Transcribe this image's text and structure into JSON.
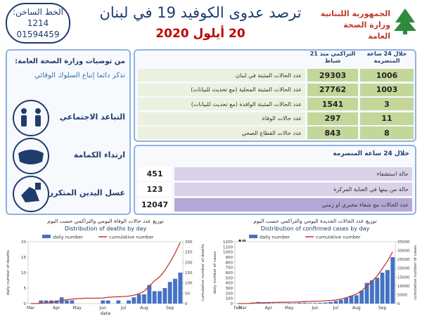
{
  "header": {
    "hotline_label": "الخط الساخن:",
    "hotline_numbers": [
      "1214",
      "01594459"
    ],
    "title": "ترصد عدوى الكوفيد 19 في لبنان",
    "date": "20 أيلول 2020",
    "ministry": [
      "الجمهورية اللبنانية",
      "وزارة الصحة العامة"
    ]
  },
  "recommendations": {
    "title": "من توصيات وزارة الصحة العامة:",
    "subtitle": "تذكر دائما إتباع السلوك الوقائي",
    "items": [
      "التباعد الاجتماعي",
      "ارتداء الكمامة",
      "غسل اليدين المتكرر"
    ]
  },
  "summary_table": {
    "headers": [
      "خلال 24 ساعة المنصرمة",
      "التراكمي منذ 21 شباط"
    ],
    "rows": [
      [
        1006,
        29303,
        "عدد الحالات المثبتة في لبنان"
      ],
      [
        1003,
        27762,
        "عدد الحالات المثبتة المحلية (مع تحديث للبيانات)"
      ],
      [
        3,
        1541,
        "عدد الحالات المثبتة الوافدة (مع تحديث للبيانات)"
      ],
      [
        11,
        297,
        "عدد حالات الوفاة"
      ],
      [
        8,
        843,
        "عدد حالات القطاع الصحي"
      ]
    ]
  },
  "hospital_table": {
    "title": "خلال 24 ساعة المنصرمة",
    "rows": [
      [
        451,
        "حالة استشفاء"
      ],
      [
        123,
        "حالة من بينها في العناية المركزة"
      ],
      [
        12047,
        "عدد الحالات مع شفاء مخبري او زمني"
      ]
    ]
  },
  "chart_data": [
    {
      "type": "combo",
      "title_ar": "توزيع عدد حالات الوفاة اليومي والتراكمي حسب اليوم",
      "title": "Distribution of deaths by day",
      "ylabel": "daily number of deaths",
      "y2label": "cumulative number of deaths",
      "xlabel": "date",
      "categories": [
        "Mar",
        null,
        null,
        null,
        null,
        "Apr",
        null,
        null,
        null,
        "May",
        null,
        null,
        null,
        null,
        "Jun",
        null,
        null,
        null,
        "Jul",
        null,
        null,
        null,
        "Aug",
        null,
        null,
        null,
        null,
        "Sep",
        null,
        null
      ],
      "series": [
        {
          "name": "daily number",
          "type": "bar",
          "color": "#4472c4",
          "values": [
            0,
            0,
            1,
            1,
            1,
            1,
            2,
            1,
            1,
            0,
            0,
            0,
            0,
            0,
            1,
            1,
            0,
            1,
            0,
            1,
            2,
            3,
            3,
            6,
            4,
            4,
            5,
            7,
            8,
            10
          ]
        },
        {
          "name": "cumulative number",
          "type": "line",
          "axis": "y2",
          "color": "#c0392b",
          "values": [
            0,
            0,
            1,
            3,
            5,
            9,
            14,
            19,
            21,
            24,
            25,
            26,
            26,
            26,
            27,
            30,
            32,
            33,
            34,
            36,
            40,
            48,
            60,
            85,
            110,
            130,
            160,
            200,
            245,
            297
          ]
        }
      ],
      "ylim": [
        0,
        20
      ],
      "yticks": [
        0,
        5,
        10,
        15,
        20
      ],
      "y2lim": [
        0,
        300
      ],
      "y2ticks": [
        0,
        50,
        100,
        150,
        200,
        250,
        300
      ]
    },
    {
      "type": "combo",
      "title_ar": "توزيع عدد الحالات الجديدة اليومي والتراكمي حسب اليوم",
      "title": "Distribution of confirmed cases by day",
      "annotation": "All",
      "ylabel": "daily number of cases",
      "y2label": "cumulative number of cases",
      "categories": [
        "Feb",
        "Mar",
        null,
        null,
        null,
        null,
        "Apr",
        null,
        null,
        null,
        "May",
        null,
        null,
        null,
        null,
        "Jun",
        null,
        null,
        null,
        "Jul",
        null,
        null,
        null,
        "Aug",
        null,
        null,
        null,
        null,
        "Sep",
        null,
        null
      ],
      "series": [
        {
          "name": "daily number",
          "type": "bar",
          "color": "#4472c4",
          "values": [
            0,
            2,
            8,
            20,
            30,
            15,
            10,
            8,
            5,
            5,
            10,
            8,
            15,
            15,
            10,
            10,
            15,
            20,
            30,
            50,
            70,
            110,
            150,
            160,
            250,
            400,
            450,
            500,
            600,
            650,
            900
          ]
        },
        {
          "name": "cumulative number",
          "type": "line",
          "axis": "y2",
          "color": "#c0392b",
          "values": [
            1,
            10,
            50,
            160,
            390,
            460,
            560,
            630,
            670,
            700,
            800,
            850,
            950,
            1100,
            1200,
            1300,
            1400,
            1550,
            1750,
            2000,
            2500,
            3300,
            4300,
            5400,
            7100,
            9800,
            12700,
            15600,
            19800,
            24000,
            29303
          ]
        }
      ],
      "ylim": [
        0,
        1200
      ],
      "yticks": [
        0,
        100,
        200,
        300,
        400,
        500,
        600,
        700,
        800,
        900,
        1000,
        1100,
        1200
      ],
      "y2lim": [
        0,
        35000
      ],
      "y2ticks": [
        0,
        5000,
        10000,
        15000,
        20000,
        25000,
        30000,
        35000
      ]
    }
  ]
}
